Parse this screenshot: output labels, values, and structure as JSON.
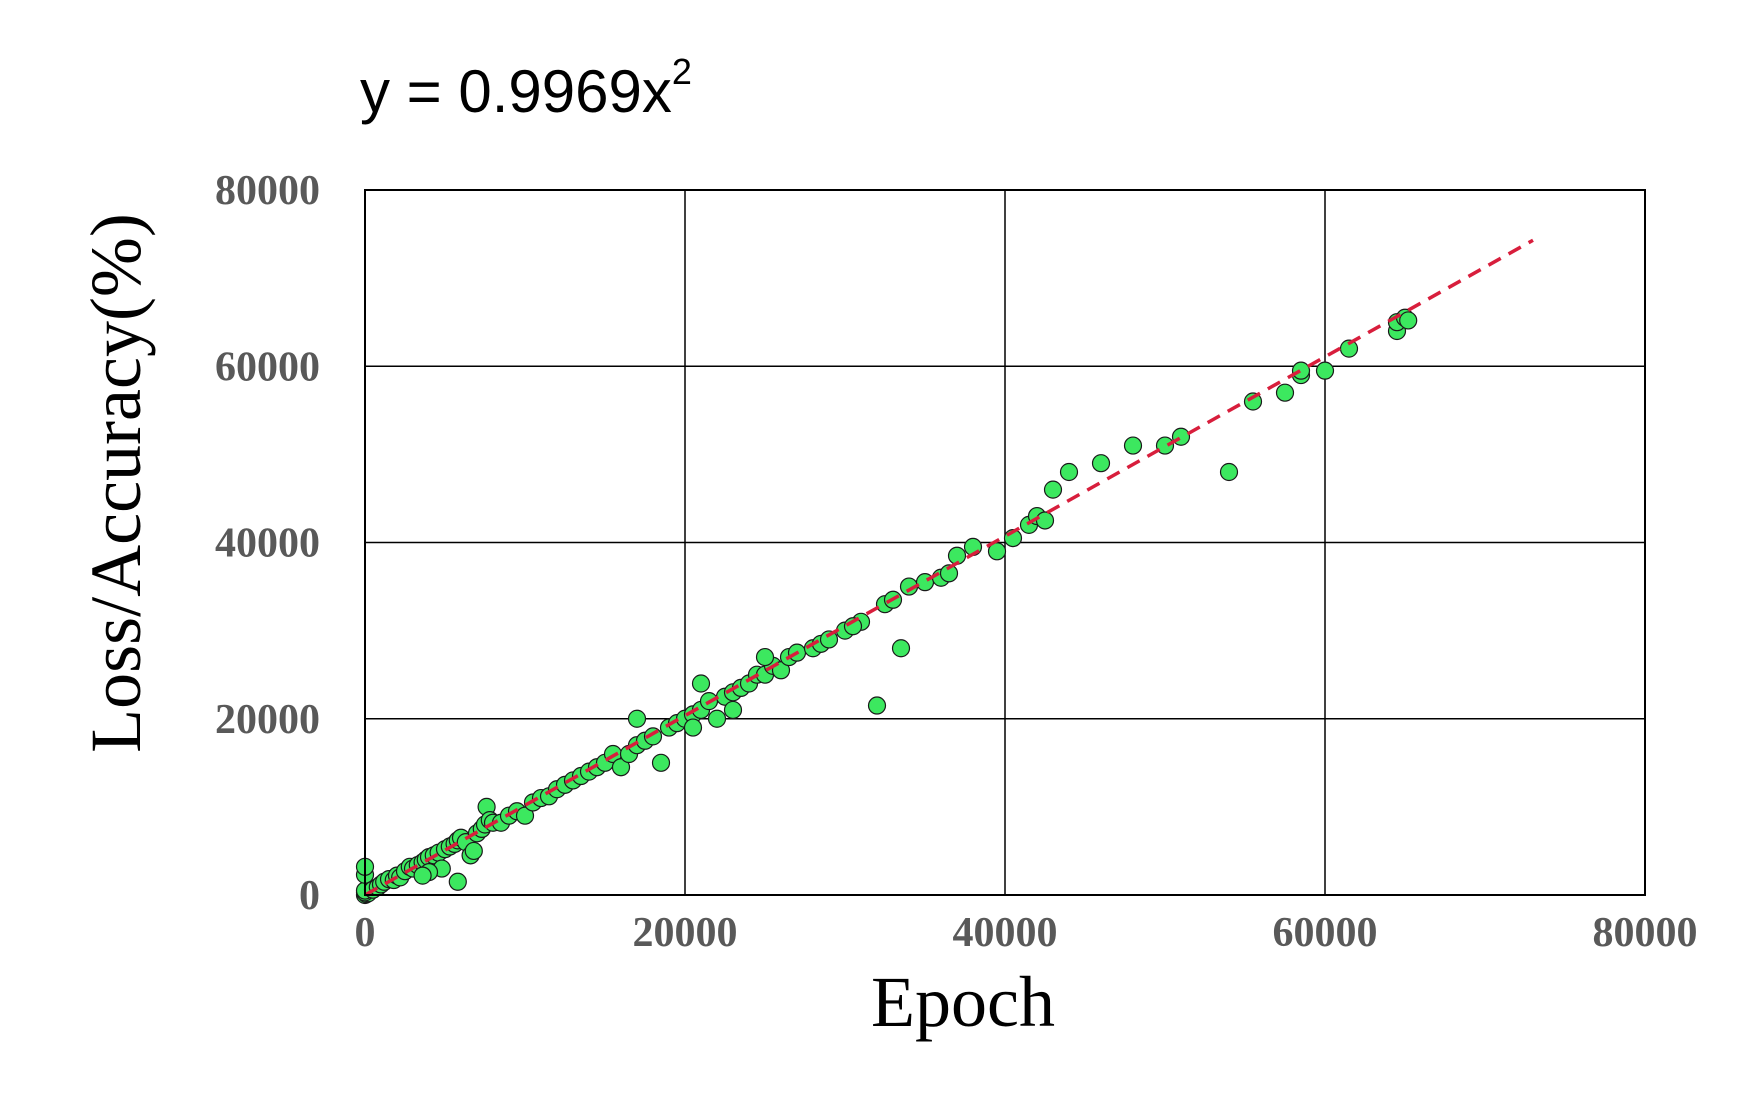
{
  "chart_data": {
    "type": "scatter",
    "title": "",
    "equation": {
      "main": "y = 0.9969x",
      "sup": "2"
    },
    "xlabel": "Epoch",
    "ylabel": "Loss/Accuracy(%)",
    "xlim": [
      0,
      80000
    ],
    "ylim": [
      0,
      80000
    ],
    "x_ticks": [
      "0",
      "20000",
      "40000",
      "60000",
      "80000"
    ],
    "y_ticks": [
      "0",
      "20000",
      "40000",
      "60000",
      "80000"
    ],
    "grid": true,
    "legend": "none",
    "colors": {
      "point_fill": "#3ce85f",
      "point_stroke": "#1a1a1a",
      "trendline": "#d81e3c",
      "grid": "#000000",
      "tick_text": "#595959"
    },
    "trendline": {
      "style": "dashed",
      "points": [
        [
          0,
          0
        ],
        [
          73000,
          74300
        ]
      ]
    },
    "series": [
      {
        "points": [
          [
            0,
            0
          ],
          [
            100,
            100
          ],
          [
            200,
            200
          ],
          [
            0,
            300
          ],
          [
            0,
            500
          ],
          [
            0,
            2300
          ],
          [
            0,
            3200
          ],
          [
            500,
            600
          ],
          [
            800,
            900
          ],
          [
            1000,
            1200
          ],
          [
            1200,
            1500
          ],
          [
            1500,
            1800
          ],
          [
            1800,
            1700
          ],
          [
            2000,
            2200
          ],
          [
            2200,
            2000
          ],
          [
            2500,
            2700
          ],
          [
            2800,
            3200
          ],
          [
            3000,
            3000
          ],
          [
            3300,
            3400
          ],
          [
            3600,
            3700
          ],
          [
            3800,
            4000
          ],
          [
            4000,
            4300
          ],
          [
            4300,
            4500
          ],
          [
            4600,
            4800
          ],
          [
            4800,
            3000
          ],
          [
            5000,
            5200
          ],
          [
            5300,
            5500
          ],
          [
            5600,
            5800
          ],
          [
            5800,
            6200
          ],
          [
            6000,
            6500
          ],
          [
            6300,
            6000
          ],
          [
            6600,
            4500
          ],
          [
            6800,
            5000
          ],
          [
            7000,
            7000
          ],
          [
            7300,
            7500
          ],
          [
            7500,
            8000
          ],
          [
            7600,
            10000
          ],
          [
            7800,
            8500
          ],
          [
            8000,
            8200
          ],
          [
            5800,
            1500
          ],
          [
            4000,
            2600
          ],
          [
            3600,
            2200
          ],
          [
            8500,
            8200
          ],
          [
            9000,
            9000
          ],
          [
            9500,
            9500
          ],
          [
            10000,
            9000
          ],
          [
            10500,
            10500
          ],
          [
            11000,
            11000
          ],
          [
            11500,
            11200
          ],
          [
            12000,
            12000
          ],
          [
            12500,
            12500
          ],
          [
            13000,
            13000
          ],
          [
            13500,
            13500
          ],
          [
            14000,
            14000
          ],
          [
            14500,
            14500
          ],
          [
            15000,
            15000
          ],
          [
            15500,
            16000
          ],
          [
            16000,
            14500
          ],
          [
            16500,
            16000
          ],
          [
            17000,
            17000
          ],
          [
            17500,
            17500
          ],
          [
            18000,
            18000
          ],
          [
            18500,
            15000
          ],
          [
            19000,
            19000
          ],
          [
            19500,
            19500
          ],
          [
            20000,
            20000
          ],
          [
            20500,
            20500
          ],
          [
            21000,
            21000
          ],
          [
            21500,
            22000
          ],
          [
            22000,
            20000
          ],
          [
            22500,
            22500
          ],
          [
            23000,
            23000
          ],
          [
            23500,
            23500
          ],
          [
            24000,
            24000
          ],
          [
            24500,
            25000
          ],
          [
            25000,
            25000
          ],
          [
            25500,
            26000
          ],
          [
            26000,
            25500
          ],
          [
            26500,
            27000
          ],
          [
            27000,
            27500
          ],
          [
            28000,
            28000
          ],
          [
            28500,
            28500
          ],
          [
            29000,
            29000
          ],
          [
            30000,
            30000
          ],
          [
            31000,
            31000
          ],
          [
            17000,
            20000
          ],
          [
            20500,
            19000
          ],
          [
            21000,
            24000
          ],
          [
            23000,
            21000
          ],
          [
            25000,
            27000
          ],
          [
            30500,
            30500
          ],
          [
            32500,
            33000
          ],
          [
            33000,
            33500
          ],
          [
            34000,
            35000
          ],
          [
            35000,
            35500
          ],
          [
            36000,
            36000
          ],
          [
            36500,
            36500
          ],
          [
            37000,
            38500
          ],
          [
            38000,
            39500
          ],
          [
            39500,
            39000
          ],
          [
            40500,
            40500
          ],
          [
            41500,
            42000
          ],
          [
            42000,
            43000
          ],
          [
            42500,
            42500
          ],
          [
            43000,
            46000
          ],
          [
            33500,
            28000
          ],
          [
            32000,
            21500
          ],
          [
            44000,
            48000
          ],
          [
            46000,
            49000
          ],
          [
            48000,
            51000
          ],
          [
            50000,
            51000
          ],
          [
            51000,
            52000
          ],
          [
            54000,
            48000
          ],
          [
            55500,
            56000
          ],
          [
            57500,
            57000
          ],
          [
            58500,
            59000
          ],
          [
            58500,
            59500
          ],
          [
            60000,
            59500
          ],
          [
            61500,
            62000
          ],
          [
            64500,
            64000
          ],
          [
            64500,
            65000
          ],
          [
            65000,
            65500
          ],
          [
            65200,
            65200
          ]
        ]
      }
    ]
  }
}
